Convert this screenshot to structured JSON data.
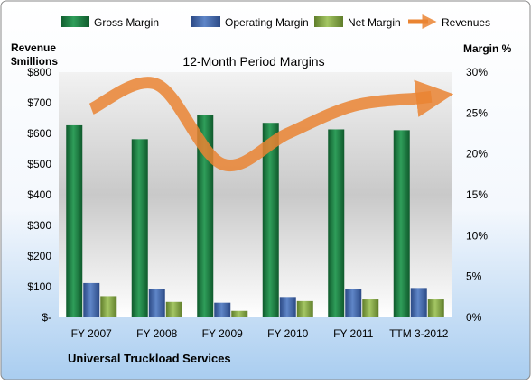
{
  "chart_data": {
    "type": "bar",
    "title": "12-Month Period Margins",
    "left_axis_label_line1": "Revenue",
    "left_axis_label_line2": "$millions",
    "right_axis_label": "Margin %",
    "company": "Universal Truckload Services",
    "categories": [
      "FY 2007",
      "FY 2008",
      "FY 2009",
      "FY 2010",
      "FY 2011",
      "TTM 3-2012"
    ],
    "left_ticks": [
      "$-",
      "$100",
      "$200",
      "$300",
      "$400",
      "$500",
      "$600",
      "$700",
      "$800"
    ],
    "right_ticks": [
      "0%",
      "5%",
      "10%",
      "15%",
      "20%",
      "25%",
      "30%"
    ],
    "ylim_left": [
      0,
      800
    ],
    "ylim_right": [
      0,
      30
    ],
    "legend_position": "top",
    "grid": false,
    "series": [
      {
        "name": "Gross Margin",
        "axis": "right",
        "color": "#1f8a4a",
        "values": [
          23.5,
          21.8,
          24.8,
          23.8,
          23.0,
          22.9
        ]
      },
      {
        "name": "Operating Margin",
        "axis": "right",
        "color": "#4a6fb0",
        "values": [
          4.2,
          3.5,
          1.8,
          2.5,
          3.5,
          3.6
        ]
      },
      {
        "name": "Net Margin",
        "axis": "right",
        "color": "#8db04a",
        "values": [
          2.6,
          1.9,
          0.8,
          2.0,
          2.2,
          2.2
        ]
      },
      {
        "name": "Revenues",
        "axis": "left",
        "type": "line",
        "color": "#ea8432",
        "values": [
          680,
          760,
          500,
          600,
          690,
          715
        ]
      }
    ]
  }
}
